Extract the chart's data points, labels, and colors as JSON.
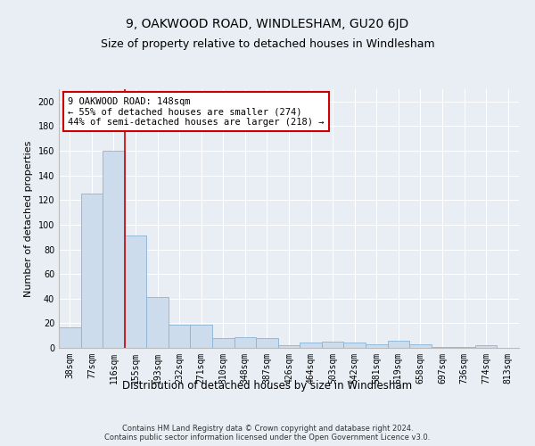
{
  "title": "9, OAKWOOD ROAD, WINDLESHAM, GU20 6JD",
  "subtitle": "Size of property relative to detached houses in Windlesham",
  "xlabel": "Distribution of detached houses by size in Windlesham",
  "ylabel": "Number of detached properties",
  "footer_line1": "Contains HM Land Registry data © Crown copyright and database right 2024.",
  "footer_line2": "Contains public sector information licensed under the Open Government Licence v3.0.",
  "categories": [
    "38sqm",
    "77sqm",
    "116sqm",
    "155sqm",
    "193sqm",
    "232sqm",
    "271sqm",
    "310sqm",
    "348sqm",
    "387sqm",
    "426sqm",
    "464sqm",
    "503sqm",
    "542sqm",
    "581sqm",
    "619sqm",
    "658sqm",
    "697sqm",
    "736sqm",
    "774sqm",
    "813sqm"
  ],
  "values": [
    17,
    125,
    160,
    91,
    41,
    19,
    19,
    8,
    9,
    8,
    2,
    4,
    5,
    4,
    3,
    6,
    3,
    1,
    1,
    2,
    0
  ],
  "bar_color": "#ccdcec",
  "bar_edge_color": "#8ab4d4",
  "vline_x_index": 2,
  "vline_color": "#cc0000",
  "annotation_text": "9 OAKWOOD ROAD: 148sqm\n← 55% of detached houses are smaller (274)\n44% of semi-detached houses are larger (218) →",
  "annotation_box_facecolor": "#ffffff",
  "annotation_box_edgecolor": "#cc0000",
  "ylim": [
    0,
    210
  ],
  "yticks": [
    0,
    20,
    40,
    60,
    80,
    100,
    120,
    140,
    160,
    180,
    200
  ],
  "background_color": "#e8eef4",
  "plot_bg_color": "#e8eef4",
  "grid_color": "#ffffff",
  "title_fontsize": 10,
  "subtitle_fontsize": 9,
  "tick_fontsize": 7,
  "ylabel_fontsize": 8,
  "xlabel_fontsize": 8.5,
  "annotation_fontsize": 7.5,
  "footer_fontsize": 6
}
